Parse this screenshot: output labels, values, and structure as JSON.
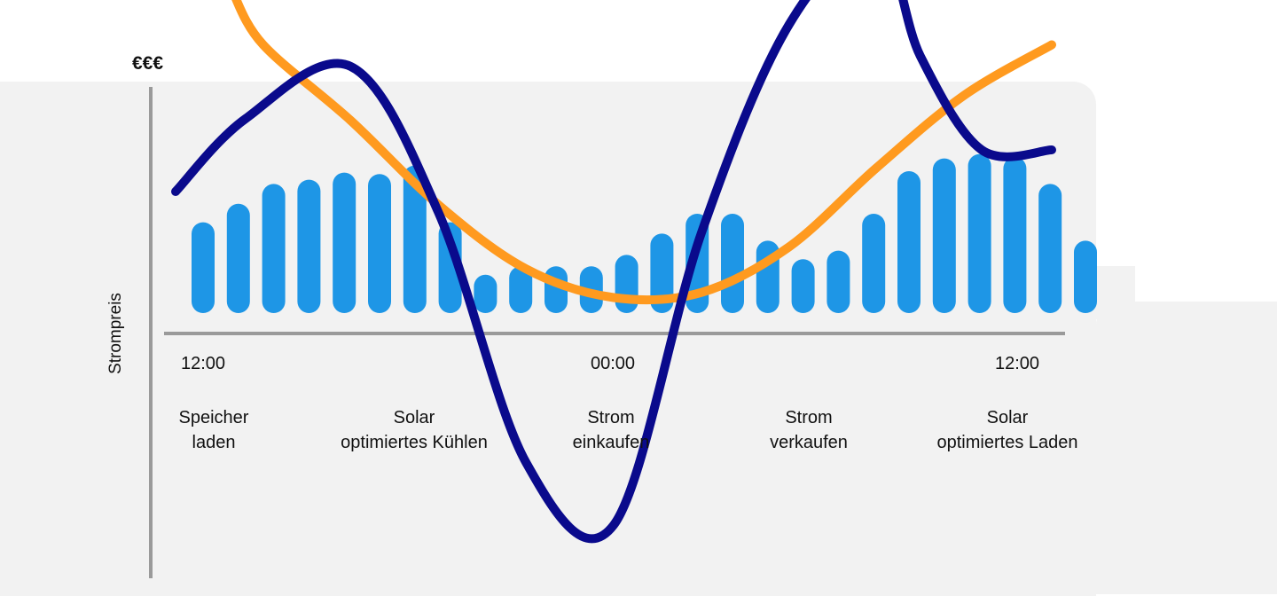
{
  "chart_data": {
    "type": "bar",
    "ylabel": "Strompreis",
    "y_unit_marker": "€€€",
    "x_tick_labels": [
      "12:00",
      "00:00",
      "12:00"
    ],
    "activity_labels": [
      "Speicher\nladen",
      "Solar\noptimiertes Kühlen",
      "Strom\neinkaufen",
      "Strom\nverkaufen",
      "Solar\noptimiertes Laden"
    ],
    "bars": [
      0.64,
      0.77,
      0.91,
      0.94,
      0.99,
      0.98,
      1.04,
      0.64,
      0.27,
      0.33,
      0.33,
      0.33,
      0.41,
      0.56,
      0.7,
      0.7,
      0.51,
      0.38,
      0.44,
      0.7,
      1.0,
      1.09,
      1.12,
      1.1,
      0.91,
      0.51
    ],
    "series": [
      {
        "color": "#ff9a1f",
        "x": [
          0,
          0.1,
          0.2,
          0.3,
          0.4,
          0.5,
          0.6,
          0.7,
          0.8,
          0.9,
          1.0
        ],
        "values": [
          1.8,
          1.55,
          1.1,
          0.6,
          0.22,
          0.05,
          0.08,
          0.35,
          0.82,
          1.25,
          1.55
        ]
      },
      {
        "color": "#0a0a8c",
        "x": [
          0,
          0.08,
          0.2,
          0.3,
          0.4,
          0.5,
          0.6,
          0.7,
          0.8,
          0.85,
          0.92,
          1.0
        ],
        "values": [
          0.4,
          0.75,
          1.0,
          0.3,
          -0.9,
          -1.2,
          0.2,
          1.2,
          1.6,
          1.05,
          0.6,
          0.6
        ]
      }
    ],
    "bar_color": "#1e96e6",
    "axis_color": "#9a9a9a"
  }
}
